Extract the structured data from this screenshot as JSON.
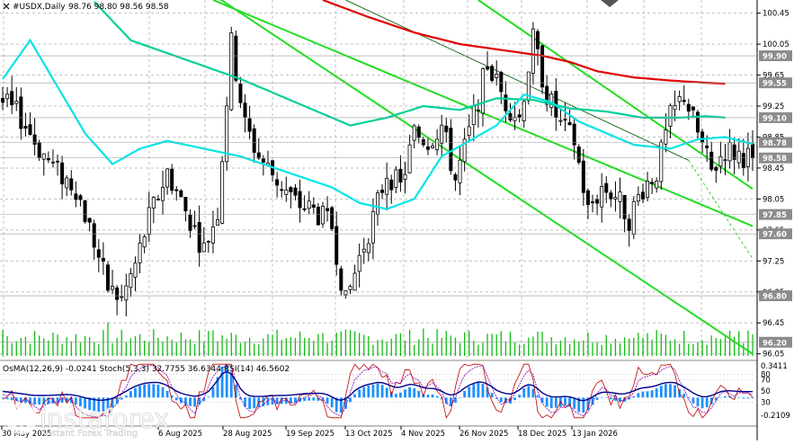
{
  "chart_data": {
    "type": "candlestick",
    "header": {
      "symbol": "#USDX,Daily",
      "ohlc": "98.76 98.80 98.56 98.58"
    },
    "x_labels": [
      "30 May 2025",
      "6 Aug 2025",
      "28 Aug 2025",
      "19 Sep 2025",
      "13 Oct 2025",
      "4 Nov 2025",
      "26 Nov 2025",
      "18 Dec 2025",
      "13 Jan 2026"
    ],
    "y_ticks": [
      "100.45",
      "100.05",
      "99.65",
      "99.25",
      "98.85",
      "98.45",
      "98.05",
      "97.65",
      "97.25",
      "96.85",
      "96.45",
      "96.05"
    ],
    "level_labels": [
      {
        "text": "99.90",
        "value": 99.9
      },
      {
        "text": "99.55",
        "value": 99.55
      },
      {
        "text": "99.10",
        "value": 99.1
      },
      {
        "text": "98.78",
        "value": 98.78
      },
      {
        "text": "98.58",
        "value": 98.58
      },
      {
        "text": "97.85",
        "value": 97.85
      },
      {
        "text": "97.60",
        "value": 97.6
      },
      {
        "text": "96.80",
        "value": 96.8
      },
      {
        "text": "96.20",
        "value": 96.2
      }
    ],
    "ylim": [
      96.0,
      100.62
    ],
    "n_bars": 165,
    "close_path": [
      [
        0,
        99.3
      ],
      [
        4,
        99.1
      ],
      [
        8,
        98.7
      ],
      [
        12,
        98.4
      ],
      [
        16,
        98.2
      ],
      [
        20,
        97.5
      ],
      [
        23,
        96.9
      ],
      [
        26,
        96.75
      ],
      [
        29,
        97.2
      ],
      [
        32,
        97.8
      ],
      [
        36,
        98.4
      ],
      [
        40,
        97.9
      ],
      [
        44,
        97.4
      ],
      [
        47,
        97.9
      ],
      [
        50,
        100.05
      ],
      [
        53,
        99.0
      ],
      [
        56,
        98.6
      ],
      [
        60,
        98.3
      ],
      [
        64,
        98.0
      ],
      [
        68,
        97.9
      ],
      [
        72,
        97.7
      ],
      [
        75,
        96.7
      ],
      [
        78,
        97.3
      ],
      [
        81,
        97.8
      ],
      [
        84,
        98.4
      ],
      [
        87,
        98.2
      ],
      [
        90,
        98.9
      ],
      [
        93,
        98.8
      ],
      [
        96,
        99.0
      ],
      [
        99,
        98.3
      ],
      [
        102,
        98.9
      ],
      [
        106,
        99.8
      ],
      [
        110,
        99.3
      ],
      [
        113,
        99.1
      ],
      [
        116,
        100.1
      ],
      [
        119,
        99.4
      ],
      [
        122,
        99.0
      ],
      [
        125,
        98.8
      ],
      [
        128,
        97.9
      ],
      [
        131,
        98.2
      ],
      [
        134,
        98.1
      ],
      [
        137,
        97.8
      ],
      [
        140,
        98.2
      ],
      [
        143,
        98.4
      ],
      [
        146,
        99.1
      ],
      [
        149,
        99.4
      ],
      [
        152,
        98.9
      ],
      [
        155,
        98.4
      ],
      [
        158,
        98.7
      ],
      [
        160,
        98.65
      ],
      [
        164,
        98.58
      ]
    ],
    "ma_fast": [
      [
        0,
        99.6
      ],
      [
        6,
        100.1
      ],
      [
        12,
        99.5
      ],
      [
        18,
        98.9
      ],
      [
        24,
        98.5
      ],
      [
        30,
        98.7
      ],
      [
        36,
        98.8
      ],
      [
        44,
        98.7
      ],
      [
        52,
        98.6
      ],
      [
        62,
        98.4
      ],
      [
        72,
        98.2
      ],
      [
        78,
        98.0
      ],
      [
        84,
        97.92
      ],
      [
        90,
        98.05
      ],
      [
        96,
        98.6
      ],
      [
        102,
        98.8
      ],
      [
        108,
        99.0
      ],
      [
        114,
        99.4
      ],
      [
        120,
        99.3
      ],
      [
        126,
        99.05
      ],
      [
        132,
        98.9
      ],
      [
        138,
        98.75
      ],
      [
        146,
        98.7
      ],
      [
        152,
        98.82
      ],
      [
        158,
        98.85
      ],
      [
        164,
        98.76
      ]
    ],
    "ma_mid": [
      [
        20,
        100.6
      ],
      [
        28,
        100.1
      ],
      [
        40,
        99.85
      ],
      [
        52,
        99.6
      ],
      [
        64,
        99.3
      ],
      [
        76,
        99.0
      ],
      [
        84,
        99.1
      ],
      [
        92,
        99.25
      ],
      [
        100,
        99.2
      ],
      [
        108,
        99.35
      ],
      [
        116,
        99.33
      ],
      [
        124,
        99.22
      ],
      [
        132,
        99.18
      ],
      [
        140,
        99.1
      ],
      [
        148,
        99.1
      ],
      [
        154,
        99.12
      ],
      [
        158,
        99.1
      ]
    ],
    "ma_slow": [
      [
        70,
        100.62
      ],
      [
        80,
        100.4
      ],
      [
        90,
        100.2
      ],
      [
        100,
        100.05
      ],
      [
        106,
        100.0
      ],
      [
        112,
        99.95
      ],
      [
        118,
        99.9
      ],
      [
        124,
        99.82
      ],
      [
        130,
        99.7
      ],
      [
        138,
        99.62
      ],
      [
        146,
        99.58
      ],
      [
        154,
        99.55
      ],
      [
        158,
        99.54
      ]
    ],
    "channel_lines": [
      {
        "from": [
          0,
          102.5
        ],
        "to": [
          164,
          96.05
        ]
      },
      {
        "from": [
          46,
          100.62
        ],
        "to": [
          164,
          97.7
        ]
      },
      {
        "from": [
          104,
          100.62
        ],
        "to": [
          164,
          98.18
        ]
      }
    ],
    "inner_line": {
      "solid_from": [
        75,
        100.62
      ],
      "solid_to": [
        150,
        98.55
      ],
      "dashed_to": [
        164,
        97.28
      ]
    },
    "indicator": {
      "label": "OsMA(12,26,9) -0.0241  Stoch(5,3,3) 32.7755 36.6344  RSI(14) 46.5602",
      "y_labels": [
        "0.3411",
        "80",
        "70",
        "50",
        "30",
        "-0.2109"
      ],
      "ylim": [
        -0.2109,
        0.3411
      ]
    },
    "colors": {
      "bull": "#000000",
      "bear": "#000000",
      "grid": "#c0c0c0",
      "ma_fast": "#00e5e5",
      "ma_mid": "#00d09a",
      "ma_slow": "#e00000",
      "channel": "#22dd22",
      "volume": "#11bb11",
      "osma": "#1e90ff",
      "stoch_main": "#c00000",
      "stoch_signal": "#7a00b0",
      "rsi": "#00008b"
    },
    "watermark": {
      "brand": "instaforex",
      "tagline": "Instant Forex Trading"
    }
  }
}
